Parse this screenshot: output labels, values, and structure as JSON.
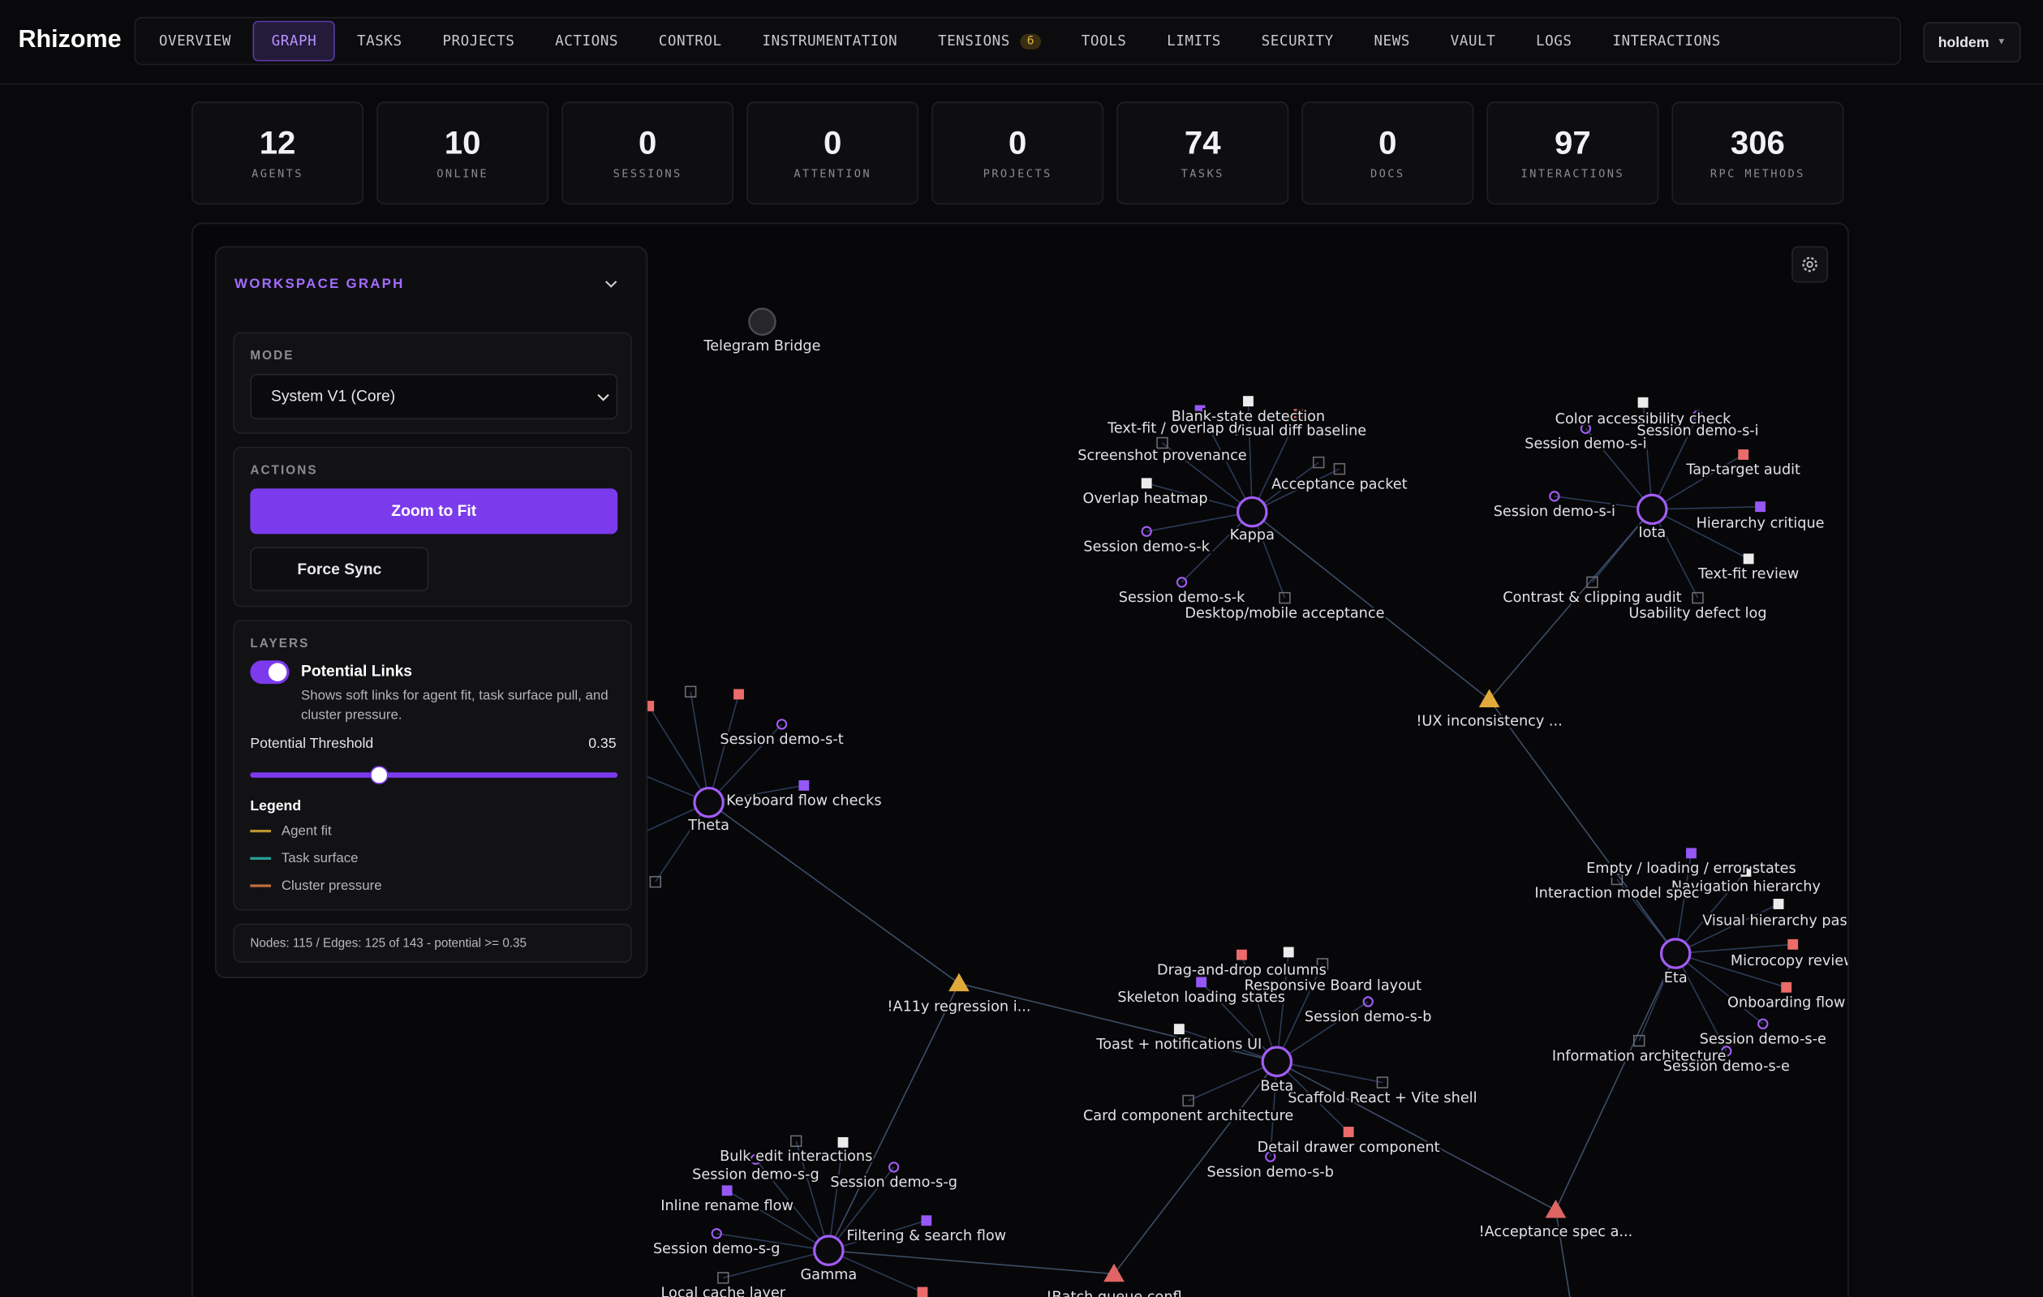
{
  "header": {
    "brand": "Rhizome",
    "nav": [
      "OVERVIEW",
      "GRAPH",
      "TASKS",
      "PROJECTS",
      "ACTIONS",
      "CONTROL",
      "INSTRUMENTATION",
      "TENSIONS",
      "TOOLS",
      "LIMITS",
      "SECURITY",
      "NEWS",
      "VAULT",
      "LOGS",
      "INTERACTIONS"
    ],
    "tensions_badge": 6,
    "user": "holdem"
  },
  "stats": [
    {
      "value": 12,
      "label": "AGENTS"
    },
    {
      "value": 10,
      "label": "ONLINE"
    },
    {
      "value": 0,
      "label": "SESSIONS"
    },
    {
      "value": 0,
      "label": "ATTENTION"
    },
    {
      "value": 0,
      "label": "PROJECTS"
    },
    {
      "value": 74,
      "label": "TASKS"
    },
    {
      "value": 0,
      "label": "DOCS"
    },
    {
      "value": 97,
      "label": "INTERACTIONS"
    },
    {
      "value": 306,
      "label": "RPC METHODS"
    }
  ],
  "panel": {
    "title": "WORKSPACE GRAPH",
    "mode_label": "MODE",
    "mode": "System V1 (Core)",
    "actions_label": "ACTIONS",
    "zoom_button": "Zoom to Fit",
    "sync_button": "Force Sync",
    "layers_label": "LAYERS",
    "toggle_label": "Potential Links",
    "toggle_description": "Shows soft links for agent fit, task surface pull, and cluster pressure.",
    "threshold_label": "Potential Threshold",
    "threshold": 0.35,
    "legend_title": "Legend",
    "legend": [
      "Agent fit",
      "Task surface",
      "Cluster pressure"
    ],
    "footer": "Nodes: 115 / Edges: 125 of 143 - potential >= 0.35"
  },
  "graph": {
    "nodes": [
      "Telegram Bridge",
      "Kappa",
      "Iota",
      "Theta",
      "Eta",
      "Beta",
      "Gamma",
      "!UX inconsistency ...",
      "!A11y regression i...",
      "!Acceptance spec a...",
      "!Batch queue confl",
      "Blank-state detection",
      "Visual diff baseline",
      "Text-fit / overlap d",
      "Screenshot provenance",
      "Acceptance packet",
      "Overlap heatmap",
      "Session demo-s-k",
      "Session demo-s-k",
      "Desktop/mobile acceptance",
      "Color accessibility check",
      "Session demo-s-i",
      "Session demo-s-i",
      "Tap-target audit",
      "Session demo-s-i",
      "Hierarchy critique",
      "Text-fit review",
      "Contrast & clipping audit",
      "Usability defect log",
      "Session demo-s-t",
      "Keyboard flow checks",
      "Empty / loading / error states",
      "Navigation hierarchy",
      "Interaction model spec",
      "Visual hierarchy pass",
      "Microcopy review",
      "Onboarding flow",
      "Session demo-s-e",
      "Information architecture",
      "Session demo-s-e",
      "Drag-and-drop columns",
      "Responsive Board layout",
      "Skeleton loading states",
      "Session demo-s-b",
      "Toast + notifications UI",
      "Scaffold React + Vite shell",
      "Card component architecture",
      "Detail drawer component",
      "Session demo-s-b",
      "Bulk edit interactions",
      "Session demo-s-g",
      "Session demo-s-g",
      "Inline rename flow",
      "Filtering & search flow",
      "Session demo-s-g",
      "Local cache layer"
    ]
  }
}
